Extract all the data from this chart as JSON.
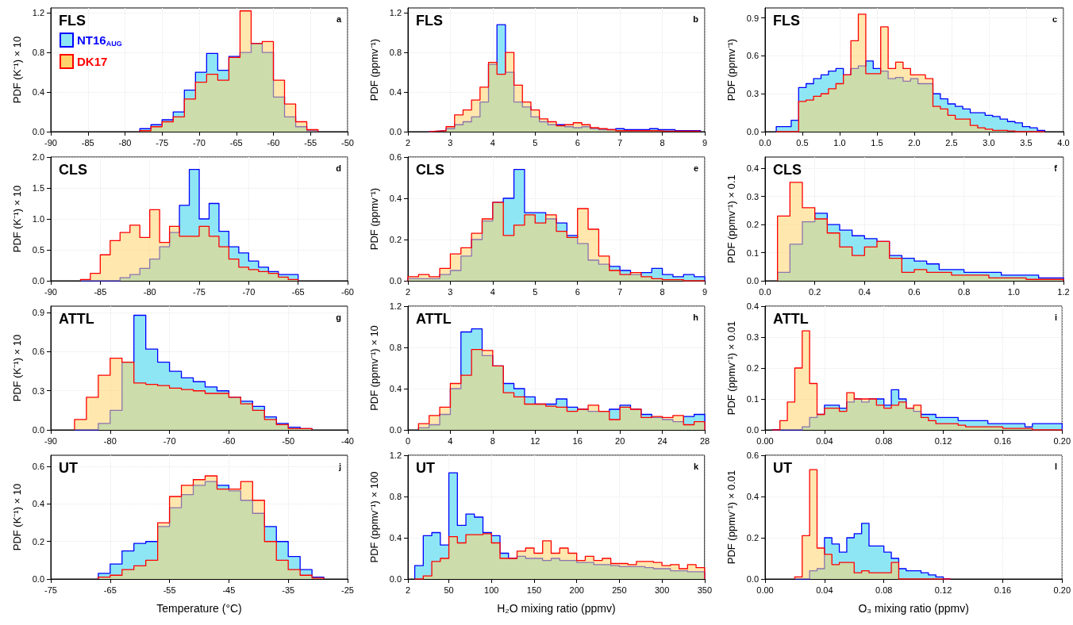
{
  "chart_data": [
    {
      "type": "histogram",
      "title": "FLS",
      "annotations": [
        "a"
      ],
      "ylabel": "PDF (K⁻¹) × 10",
      "legend": "top left",
      "grid": true,
      "xlim": [
        -90,
        -50
      ],
      "xticks": [
        -90,
        -85,
        -80,
        -75,
        -70,
        -65,
        -60,
        -55,
        -50
      ],
      "ylim": [
        0,
        1.25
      ],
      "yticks": [
        {
          "value": 0,
          "label": "0.0"
        },
        0.4,
        0.8,
        1.2
      ],
      "bins": [
        -78,
        -76.5,
        -75,
        -73.5,
        -72,
        -70.5,
        -69,
        -67.5,
        -66,
        -64.5,
        -63,
        -61.5,
        -60,
        -58.5,
        -57,
        -55.5,
        -54
      ],
      "series": [
        {
          "name": "NT16$_{AUG}$",
          "color": "#8ee6f5",
          "values": [
            0.03,
            0.07,
            0.12,
            0.2,
            0.42,
            0.6,
            0.79,
            0.62,
            0.76,
            0.8,
            0.89,
            0.8,
            0.35,
            0.15,
            0.05,
            0.01
          ]
        },
        {
          "name": "DK17",
          "color": "#ffd36b",
          "values": [
            0.01,
            0.05,
            0.1,
            0.15,
            0.33,
            0.5,
            0.58,
            0.52,
            0.75,
            1.22,
            0.89,
            0.91,
            0.52,
            0.28,
            0.1,
            0.02
          ]
        }
      ]
    },
    {
      "type": "histogram",
      "title": "FLS",
      "annotations": [
        "b"
      ],
      "ylabel": "PDF (ppmv⁻¹)",
      "grid": true,
      "xlim": [
        2,
        9
      ],
      "xticks": [
        2,
        3,
        4,
        5,
        6,
        7,
        8,
        9
      ],
      "ylim": [
        0,
        1.25
      ],
      "yticks": [
        {
          "value": 0,
          "label": "0.0"
        },
        0.4,
        0.8,
        1.2
      ],
      "bins": [
        2.5,
        2.7,
        2.9,
        3.1,
        3.3,
        3.5,
        3.7,
        3.9,
        4.1,
        4.3,
        4.5,
        4.7,
        4.9,
        5.1,
        5.3,
        5.5,
        5.7,
        5.9,
        6.1,
        6.3,
        6.5,
        6.7,
        6.9,
        7.1,
        7.3,
        7.5,
        7.7,
        7.9,
        8.1,
        8.3,
        8.5,
        8.7,
        8.9
      ],
      "series": [
        {
          "color": "#8ee6f5",
          "values": [
            0.005,
            0.01,
            0.03,
            0.07,
            0.1,
            0.15,
            0.3,
            0.68,
            1.08,
            0.6,
            0.3,
            0.25,
            0.15,
            0.1,
            0.07,
            0.07,
            0.05,
            0.04,
            0.05,
            0.03,
            0.02,
            0.02,
            0.03,
            0.02,
            0.02,
            0.02,
            0.03,
            0.02,
            0.02,
            0.01,
            0.01,
            0.01
          ]
        },
        {
          "color": "#ffd36b",
          "values": [
            0.005,
            0.01,
            0.05,
            0.17,
            0.22,
            0.32,
            0.45,
            0.7,
            0.58,
            0.8,
            0.47,
            0.3,
            0.22,
            0.13,
            0.1,
            0.06,
            0.07,
            0.09,
            0.07,
            0.04,
            0.03,
            0.02,
            0.01,
            0.01,
            0.01,
            0.01,
            0.01,
            0.005,
            0.005,
            0.005,
            0.005,
            0.005
          ]
        }
      ]
    },
    {
      "type": "histogram",
      "title": "FLS",
      "annotations": [
        "c"
      ],
      "ylabel": "PDF (ppmv⁻¹)",
      "grid": true,
      "xlim": [
        0,
        4
      ],
      "xticks": [
        {
          "value": 0,
          "label": "0.0"
        },
        0.5,
        {
          "value": 1,
          "label": "1.0"
        },
        1.5,
        {
          "value": 2,
          "label": "2.0"
        },
        2.5,
        {
          "value": 3,
          "label": "3.0"
        },
        3.5,
        {
          "value": 4,
          "label": "4.0"
        }
      ],
      "ylim": [
        0,
        0.98
      ],
      "yticks": [
        {
          "value": 0,
          "label": "0.0"
        },
        0.3,
        0.6,
        0.9
      ],
      "bins": [
        0.15,
        0.25,
        0.35,
        0.45,
        0.55,
        0.65,
        0.75,
        0.85,
        0.95,
        1.05,
        1.15,
        1.25,
        1.35,
        1.45,
        1.55,
        1.65,
        1.75,
        1.85,
        1.95,
        2.05,
        2.15,
        2.25,
        2.35,
        2.45,
        2.55,
        2.65,
        2.75,
        2.85,
        2.95,
        3.05,
        3.15,
        3.25,
        3.35,
        3.45,
        3.55,
        3.65,
        3.75
      ],
      "series": [
        {
          "color": "#8ee6f5",
          "values": [
            0.04,
            0.04,
            0.09,
            0.35,
            0.38,
            0.42,
            0.45,
            0.48,
            0.5,
            0.45,
            0.5,
            0.52,
            0.56,
            0.5,
            0.48,
            0.42,
            0.43,
            0.4,
            0.42,
            0.38,
            0.38,
            0.3,
            0.26,
            0.22,
            0.2,
            0.18,
            0.15,
            0.15,
            0.13,
            0.12,
            0.1,
            0.08,
            0.07,
            0.04,
            0.03,
            0.01
          ]
        },
        {
          "color": "#ffd36b",
          "values": [
            0,
            0,
            0,
            0.24,
            0.25,
            0.28,
            0.3,
            0.34,
            0.38,
            0.45,
            0.72,
            0.93,
            0.46,
            0.46,
            0.83,
            0.5,
            0.55,
            0.5,
            0.45,
            0.45,
            0.42,
            0.2,
            0.18,
            0.13,
            0.1,
            0.1,
            0.05,
            0.03,
            0.02,
            0.01,
            0.01,
            0.005,
            0,
            0,
            0,
            0
          ]
        }
      ]
    },
    {
      "type": "histogram",
      "title": "CLS",
      "annotations": [
        "d"
      ],
      "ylabel": "PDF (K⁻¹) × 10",
      "grid": true,
      "xlim": [
        -90,
        -60
      ],
      "xticks": [
        -90,
        -85,
        -80,
        -75,
        -70,
        -65,
        -60
      ],
      "ylim": [
        0,
        2
      ],
      "yticks": [
        {
          "value": 0,
          "label": "0.0"
        },
        0.5,
        {
          "value": 1,
          "label": "1.0"
        },
        1.5,
        {
          "value": 2,
          "label": "2.0"
        }
      ],
      "bins": [
        -87,
        -86,
        -85,
        -84,
        -83,
        -82,
        -81,
        -80,
        -79,
        -78,
        -77,
        -76,
        -75,
        -74,
        -73,
        -72,
        -71,
        -70,
        -69,
        -68,
        -67,
        -66,
        -65
      ],
      "series": [
        {
          "color": "#8ee6f5",
          "values": [
            0,
            0,
            0,
            0,
            0.05,
            0.1,
            0.2,
            0.35,
            0.55,
            0.78,
            1.22,
            1.8,
            1.0,
            1.25,
            0.8,
            0.55,
            0.45,
            0.32,
            0.22,
            0.15,
            0.1,
            0.1
          ]
        },
        {
          "color": "#ffd36b",
          "values": [
            0.02,
            0.12,
            0.42,
            0.65,
            0.78,
            0.9,
            0.7,
            1.15,
            0.62,
            0.88,
            0.72,
            0.72,
            0.88,
            0.72,
            0.55,
            0.35,
            0.22,
            0.18,
            0.15,
            0.12,
            0.06,
            0.02
          ]
        }
      ]
    },
    {
      "type": "histogram",
      "title": "CLS",
      "annotations": [
        "e"
      ],
      "ylabel": "PDF (ppmv⁻¹)",
      "grid": true,
      "xlim": [
        2,
        9
      ],
      "xticks": [
        2,
        3,
        4,
        5,
        6,
        7,
        8,
        9
      ],
      "ylim": [
        0,
        0.6
      ],
      "yticks": [
        {
          "value": 0,
          "label": "0.0"
        },
        0.2,
        0.4,
        0.6
      ],
      "bins": [
        2,
        2.25,
        2.5,
        2.75,
        3,
        3.25,
        3.5,
        3.75,
        4,
        4.25,
        4.5,
        4.75,
        5,
        5.25,
        5.5,
        5.75,
        6,
        6.25,
        6.5,
        6.75,
        7,
        7.25,
        7.5,
        7.75,
        8,
        8.25,
        8.5,
        8.75,
        9
      ],
      "series": [
        {
          "color": "#8ee6f5",
          "values": [
            0.01,
            0.01,
            0.01,
            0.03,
            0.05,
            0.12,
            0.2,
            0.29,
            0.38,
            0.4,
            0.54,
            0.33,
            0.33,
            0.3,
            0.28,
            0.22,
            0.18,
            0.1,
            0.08,
            0.07,
            0.05,
            0.03,
            0.04,
            0.06,
            0.03,
            0.02,
            0.03,
            0.02
          ]
        },
        {
          "color": "#ffd36b",
          "values": [
            0.02,
            0.03,
            0.02,
            0.06,
            0.13,
            0.16,
            0.23,
            0.3,
            0.38,
            0.22,
            0.27,
            0.32,
            0.28,
            0.32,
            0.24,
            0.21,
            0.35,
            0.25,
            0.12,
            0.05,
            0.03,
            0.04,
            0.02,
            0.01,
            0.005,
            0.005,
            0,
            0
          ]
        }
      ]
    },
    {
      "type": "histogram",
      "title": "CLS",
      "annotations": [
        "f"
      ],
      "ylabel": "PDF (ppmv⁻¹) × 0.1",
      "grid": true,
      "xlim": [
        0,
        1.2
      ],
      "xticks": [
        {
          "value": 0,
          "label": "0.0"
        },
        0.2,
        0.4,
        0.6,
        0.8,
        {
          "value": 1,
          "label": "1.0"
        },
        1.2
      ],
      "ylim": [
        0,
        0.44
      ],
      "yticks": [
        {
          "value": 0,
          "label": "0.0"
        },
        0.1,
        0.2,
        0.3,
        0.4
      ],
      "bins": [
        0.05,
        0.1,
        0.15,
        0.2,
        0.25,
        0.3,
        0.35,
        0.4,
        0.45,
        0.5,
        0.55,
        0.6,
        0.65,
        0.7,
        0.75,
        0.8,
        0.85,
        0.9,
        0.95,
        1,
        1.05,
        1.1,
        1.15,
        1.2
      ],
      "series": [
        {
          "color": "#8ee6f5",
          "values": [
            0.03,
            0.13,
            0.21,
            0.24,
            0.2,
            0.18,
            0.16,
            0.15,
            0.14,
            0.09,
            0.08,
            0.07,
            0.06,
            0.04,
            0.04,
            0.03,
            0.03,
            0.03,
            0.02,
            0.02,
            0.02,
            0.01,
            0.01
          ]
        },
        {
          "color": "#ffd36b",
          "values": [
            0.23,
            0.35,
            0.26,
            0.22,
            0.17,
            0.12,
            0.09,
            0.12,
            0.14,
            0.08,
            0.03,
            0.04,
            0.03,
            0.03,
            0.02,
            0.02,
            0.02,
            0.01,
            0.01,
            0.01,
            0.005,
            0.005,
            0.005
          ]
        }
      ]
    },
    {
      "type": "histogram",
      "title": "ATTL",
      "annotations": [
        "g"
      ],
      "ylabel": "PDF (K⁻¹) × 10",
      "grid": true,
      "xlim": [
        -90,
        -40
      ],
      "xticks": [
        -90,
        -80,
        -70,
        -60,
        -50,
        -40
      ],
      "ylim": [
        0,
        0.95
      ],
      "yticks": [
        {
          "value": 0,
          "label": "0.0"
        },
        0.3,
        0.6,
        0.9
      ],
      "bins": [
        -86,
        -84,
        -82,
        -80,
        -78,
        -76,
        -74,
        -72,
        -70,
        -68,
        -66,
        -64,
        -62,
        -60,
        -58,
        -56,
        -54,
        -52,
        -50,
        -48,
        -46
      ],
      "series": [
        {
          "color": "#8ee6f5",
          "values": [
            0,
            0,
            0.05,
            0.15,
            0.52,
            0.88,
            0.62,
            0.52,
            0.45,
            0.4,
            0.37,
            0.33,
            0.3,
            0.25,
            0.22,
            0.18,
            0.1,
            0.05,
            0.02,
            0.01
          ]
        },
        {
          "color": "#ffd36b",
          "values": [
            0.08,
            0.25,
            0.42,
            0.55,
            0.52,
            0.36,
            0.35,
            0.34,
            0.32,
            0.31,
            0.3,
            0.28,
            0.28,
            0.25,
            0.2,
            0.15,
            0.08,
            0.04,
            0.01,
            0.01
          ]
        }
      ]
    },
    {
      "type": "histogram",
      "title": "ATTL",
      "annotations": [
        "h"
      ],
      "ylabel": "PDF (ppmv⁻¹) × 10",
      "grid": true,
      "xlim": [
        0,
        28
      ],
      "xticks": [
        0,
        4,
        8,
        12,
        16,
        20,
        24,
        28
      ],
      "ylim": [
        0,
        1.2
      ],
      "yticks": [
        {
          "value": 0,
          "label": "0.0"
        },
        0.4,
        0.8,
        1.2
      ],
      "bins": [
        1,
        2,
        3,
        4,
        5,
        6,
        7,
        8,
        9,
        10,
        11,
        12,
        13,
        14,
        15,
        16,
        17,
        18,
        19,
        20,
        21,
        22,
        23,
        24,
        25,
        26,
        27,
        28
      ],
      "series": [
        {
          "color": "#8ee6f5",
          "values": [
            0.02,
            0.05,
            0.15,
            0.4,
            0.95,
            0.98,
            0.72,
            0.62,
            0.45,
            0.4,
            0.32,
            0.25,
            0.25,
            0.3,
            0.22,
            0.2,
            0.18,
            0.18,
            0.2,
            0.24,
            0.2,
            0.15,
            0.12,
            0.1,
            0.08,
            0.13,
            0.15
          ]
        },
        {
          "color": "#ffd36b",
          "values": [
            0.06,
            0.14,
            0.22,
            0.45,
            0.53,
            0.78,
            0.77,
            0.62,
            0.36,
            0.32,
            0.25,
            0.25,
            0.23,
            0.22,
            0.18,
            0.2,
            0.24,
            0.18,
            0.1,
            0.22,
            0.2,
            0.12,
            0.13,
            0.12,
            0.14,
            0.05,
            0.08
          ]
        }
      ]
    },
    {
      "type": "histogram",
      "title": "ATTL",
      "annotations": [
        "i"
      ],
      "ylabel": "PDF (ppmv⁻¹) × 0.01",
      "grid": true,
      "xlim": [
        0,
        0.2
      ],
      "xticks": [
        {
          "value": 0,
          "label": "0.00"
        },
        0.04,
        0.08,
        0.12,
        0.16,
        {
          "value": 0.2,
          "label": "0.20"
        }
      ],
      "ylim": [
        0,
        0.4
      ],
      "yticks": [
        {
          "value": 0,
          "label": "0.0"
        },
        0.1,
        0.2,
        0.3,
        0.4
      ],
      "bins": [
        0.005,
        0.01,
        0.015,
        0.02,
        0.025,
        0.03,
        0.035,
        0.04,
        0.045,
        0.05,
        0.055,
        0.06,
        0.065,
        0.07,
        0.075,
        0.08,
        0.085,
        0.09,
        0.095,
        0.1,
        0.105,
        0.11,
        0.115,
        0.12,
        0.125,
        0.13,
        0.135,
        0.14,
        0.145,
        0.15,
        0.155,
        0.16,
        0.165,
        0.17,
        0.175,
        0.18,
        0.185,
        0.19,
        0.195,
        0.2
      ],
      "series": [
        {
          "color": "#8ee6f5",
          "values": [
            0,
            0,
            0,
            0,
            0.01,
            0.04,
            0.05,
            0.08,
            0.08,
            0.07,
            0.09,
            0.1,
            0.09,
            0.1,
            0.1,
            0.08,
            0.13,
            0.1,
            0.07,
            0.06,
            0.05,
            0.05,
            0.04,
            0.04,
            0.04,
            0.03,
            0.03,
            0.03,
            0.03,
            0.02,
            0.02,
            0.02,
            0.02,
            0.02,
            0.01,
            0.02,
            0.02,
            0.02,
            0.02
          ]
        },
        {
          "color": "#ffd36b",
          "values": [
            0,
            0.03,
            0.09,
            0.2,
            0.32,
            0.15,
            0.05,
            0.07,
            0.07,
            0.06,
            0.12,
            0.1,
            0.1,
            0.1,
            0.08,
            0.07,
            0.08,
            0.09,
            0.07,
            0.08,
            0.04,
            0.03,
            0.02,
            0.02,
            0.02,
            0.015,
            0.01,
            0.01,
            0.01,
            0.01,
            0.01,
            0.005,
            0.005,
            0.005,
            0.005,
            0,
            0,
            0,
            0
          ]
        }
      ]
    },
    {
      "type": "histogram",
      "title": "UT",
      "annotations": [
        "j"
      ],
      "ylabel": "PDF (K⁻¹) × 10",
      "xlabel": "Temperature (°C)",
      "grid": true,
      "xlim": [
        -75,
        -25
      ],
      "xticks": [
        -75,
        -65,
        -55,
        -45,
        -35,
        -25
      ],
      "ylim": [
        0,
        0.66
      ],
      "yticks": [
        {
          "value": 0,
          "label": "0.0"
        },
        0.2,
        0.4,
        0.6
      ],
      "bins": [
        -67,
        -65,
        -63,
        -61,
        -59,
        -57,
        -55,
        -53,
        -51,
        -49,
        -47,
        -45,
        -43,
        -41,
        -39,
        -37,
        -35,
        -33,
        -31,
        -29
      ],
      "series": [
        {
          "color": "#8ee6f5",
          "values": [
            0.03,
            0.08,
            0.15,
            0.19,
            0.2,
            0.28,
            0.38,
            0.45,
            0.5,
            0.52,
            0.5,
            0.47,
            0.42,
            0.35,
            0.28,
            0.2,
            0.12,
            0.05,
            0.01
          ]
        },
        {
          "color": "#ffd36b",
          "values": [
            0.01,
            0.02,
            0.05,
            0.07,
            0.1,
            0.3,
            0.44,
            0.5,
            0.53,
            0.55,
            0.48,
            0.48,
            0.52,
            0.42,
            0.2,
            0.1,
            0.05,
            0.02,
            0.005
          ]
        }
      ]
    },
    {
      "type": "histogram",
      "title": "UT",
      "annotations": [
        "k"
      ],
      "ylabel": "PDF (ppmv⁻¹) × 100",
      "xlabel": "H₂O mixing ratio (ppmv)",
      "grid": true,
      "xlim": [
        2,
        350
      ],
      "xticks": [
        2,
        50,
        100,
        150,
        200,
        250,
        300,
        350
      ],
      "ylim": [
        0,
        1.2
      ],
      "yticks": [
        {
          "value": 0,
          "label": "0.0"
        },
        0.4,
        0.8,
        1.2
      ],
      "bins": [
        10,
        20,
        30,
        40,
        50,
        60,
        70,
        80,
        90,
        100,
        110,
        120,
        130,
        140,
        150,
        160,
        170,
        180,
        190,
        200,
        210,
        220,
        230,
        240,
        250,
        260,
        270,
        280,
        290,
        300,
        310,
        320,
        330,
        340,
        350
      ],
      "series": [
        {
          "color": "#8ee6f5",
          "values": [
            0.13,
            0.42,
            0.45,
            0.33,
            1.03,
            0.52,
            0.63,
            0.6,
            0.45,
            0.42,
            0.25,
            0.2,
            0.22,
            0.2,
            0.2,
            0.18,
            0.2,
            0.18,
            0.18,
            0.16,
            0.16,
            0.14,
            0.14,
            0.13,
            0.12,
            0.12,
            0.12,
            0.11,
            0.1,
            0.1,
            0.08,
            0.08,
            0.07,
            0.07
          ]
        },
        {
          "color": "#ffd36b",
          "values": [
            0,
            0.03,
            0.17,
            0.2,
            0.41,
            0.35,
            0.43,
            0.43,
            0.44,
            0.35,
            0.2,
            0.2,
            0.27,
            0.3,
            0.25,
            0.37,
            0.25,
            0.3,
            0.25,
            0.18,
            0.22,
            0.18,
            0.2,
            0.15,
            0.15,
            0.14,
            0.17,
            0.17,
            0.16,
            0.13,
            0.14,
            0.1,
            0.14,
            0.11
          ]
        }
      ]
    },
    {
      "type": "histogram",
      "title": "UT",
      "annotations": [
        "l"
      ],
      "ylabel": "PDF (ppmv⁻¹) × 0.01",
      "xlabel": "O₃ mixing ratio (ppmv)",
      "grid": true,
      "xlim": [
        0,
        0.2
      ],
      "xticks": [
        {
          "value": 0,
          "label": "0.00"
        },
        0.04,
        0.08,
        0.12,
        0.16,
        {
          "value": 0.2,
          "label": "0.20"
        }
      ],
      "ylim": [
        0,
        0.6
      ],
      "yticks": [
        {
          "value": 0,
          "label": "0.0"
        },
        0.2,
        0.4,
        0.6
      ],
      "bins": [
        0.02,
        0.025,
        0.03,
        0.035,
        0.04,
        0.045,
        0.05,
        0.055,
        0.06,
        0.065,
        0.07,
        0.075,
        0.08,
        0.085,
        0.09,
        0.095,
        0.1,
        0.105,
        0.11,
        0.115,
        0.12,
        0.125
      ],
      "series": [
        {
          "color": "#8ee6f5",
          "values": [
            0,
            0,
            0.04,
            0.05,
            0.2,
            0.17,
            0.13,
            0.2,
            0.22,
            0.27,
            0.16,
            0.16,
            0.13,
            0.1,
            0.05,
            0.04,
            0.04,
            0.03,
            0.02,
            0.01,
            0
          ]
        },
        {
          "color": "#ffd36b",
          "values": [
            0.01,
            0.21,
            0.53,
            0.15,
            0.12,
            0.07,
            0.08,
            0.08,
            0.03,
            0.04,
            0.03,
            0.03,
            0.03,
            0.08,
            0,
            0,
            0,
            0,
            0,
            0,
            0
          ]
        }
      ]
    }
  ]
}
